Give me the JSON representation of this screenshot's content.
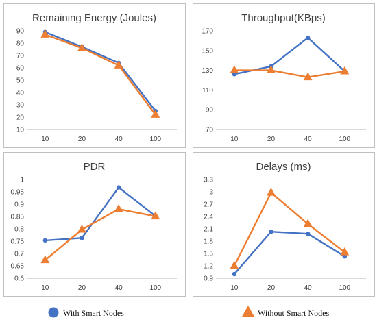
{
  "colors": {
    "with_smart_nodes": "#4472C4",
    "without_smart_nodes": "#ED7D31",
    "panel_border": "#BFBFBF",
    "axis_line": "#D9D9D9"
  },
  "legend": {
    "placement": "bottom",
    "items": [
      {
        "label": "With Smart Nodes",
        "marker": "circle"
      },
      {
        "label": "Without Smart Nodes",
        "marker": "triangle"
      }
    ]
  },
  "chart_data": [
    {
      "type": "line",
      "title": "Remaining Energy (Joules)",
      "categories": [
        "10",
        "20",
        "40",
        "100"
      ],
      "ylim": [
        10,
        90
      ],
      "yticks": [
        10,
        20,
        30,
        40,
        50,
        60,
        70,
        80,
        90
      ],
      "grid": false,
      "series": [
        {
          "name": "With Smart Nodes",
          "values": [
            89,
            77,
            64,
            25
          ]
        },
        {
          "name": "Without Smart Nodes",
          "values": [
            87,
            76,
            62,
            22
          ]
        }
      ]
    },
    {
      "type": "line",
      "title": "Throughput(KBps)",
      "categories": [
        "10",
        "20",
        "40",
        "100"
      ],
      "ylim": [
        70,
        170
      ],
      "yticks": [
        70,
        90,
        110,
        130,
        150,
        170
      ],
      "grid": false,
      "series": [
        {
          "name": "With Smart Nodes",
          "values": [
            126,
            134,
            163,
            129
          ]
        },
        {
          "name": "Without Smart Nodes",
          "values": [
            130,
            130,
            123,
            129
          ]
        }
      ]
    },
    {
      "type": "line",
      "title": "PDR",
      "categories": [
        "10",
        "20",
        "40",
        "100"
      ],
      "ylim": [
        0.6,
        1.0
      ],
      "yticks": [
        "0.6",
        "0.65",
        "0.7",
        "0.75",
        "0.8",
        "0.85",
        "0.9",
        "0.95",
        "1"
      ],
      "grid": false,
      "series": [
        {
          "name": "With Smart Nodes",
          "values": [
            0.753,
            0.763,
            0.968,
            0.852
          ]
        },
        {
          "name": "Without Smart Nodes",
          "values": [
            0.673,
            0.797,
            0.88,
            0.851
          ]
        }
      ]
    },
    {
      "type": "line",
      "title": "Delays (ms)",
      "categories": [
        "10",
        "20",
        "40",
        "100"
      ],
      "ylim": [
        0.9,
        3.3
      ],
      "yticks": [
        "0.9",
        "1.2",
        "1.5",
        "1.8",
        "2.1",
        "2.4",
        "2.7",
        "3",
        "3.3"
      ],
      "grid": false,
      "series": [
        {
          "name": "With Smart Nodes",
          "values": [
            1.0,
            2.03,
            1.98,
            1.43
          ]
        },
        {
          "name": "Without Smart Nodes",
          "values": [
            1.2,
            2.98,
            2.22,
            1.53
          ]
        }
      ]
    }
  ]
}
